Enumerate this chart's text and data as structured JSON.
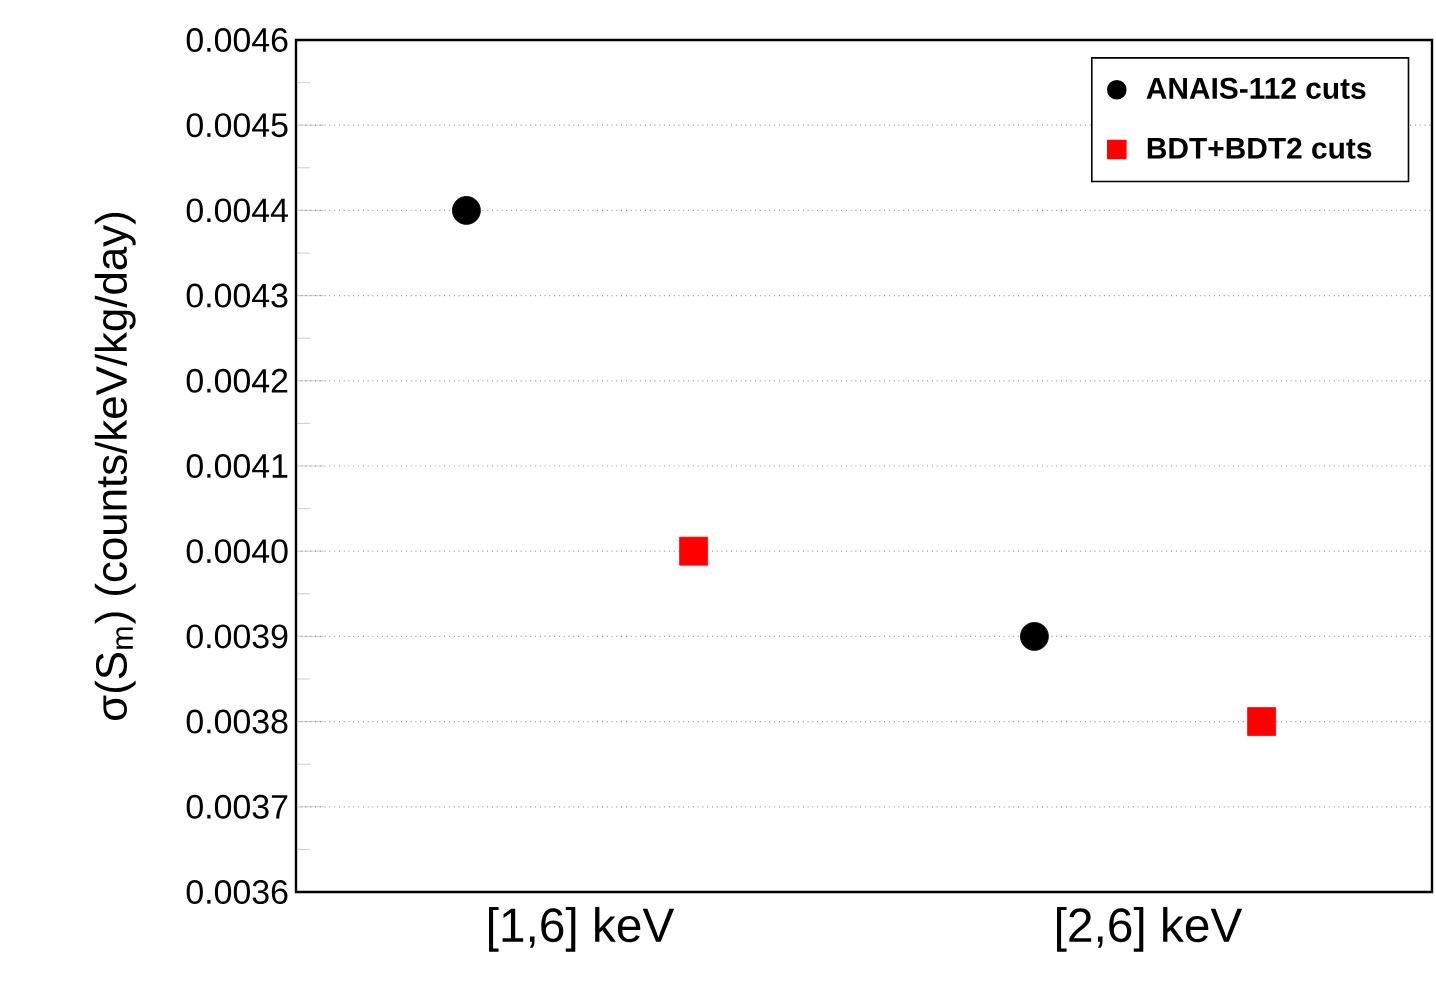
{
  "chart_data": {
    "type": "scatter",
    "ylabel": "σ(S$_{m}$) (counts/keV/kg/day)",
    "categories": [
      "[1,6] keV",
      "[2,6] keV"
    ],
    "series": [
      {
        "name": "ANAIS-112 cuts",
        "color": "#000000",
        "marker": "circle",
        "values": [
          0.0044,
          0.0039
        ]
      },
      {
        "name": "BDT+BDT2 cuts",
        "color": "#ff0000",
        "marker": "square",
        "values": [
          0.004,
          0.0038
        ]
      }
    ],
    "ylim": [
      0.0036,
      0.0046
    ],
    "yticks": [
      0.0036,
      0.0037,
      0.0038,
      0.0039,
      {
        "value": 0.004,
        "label": "0.0040"
      },
      0.0041,
      0.0042,
      0.0043,
      0.0044,
      0.0045,
      0.0046
    ],
    "grid": "y",
    "legend": "top right"
  }
}
